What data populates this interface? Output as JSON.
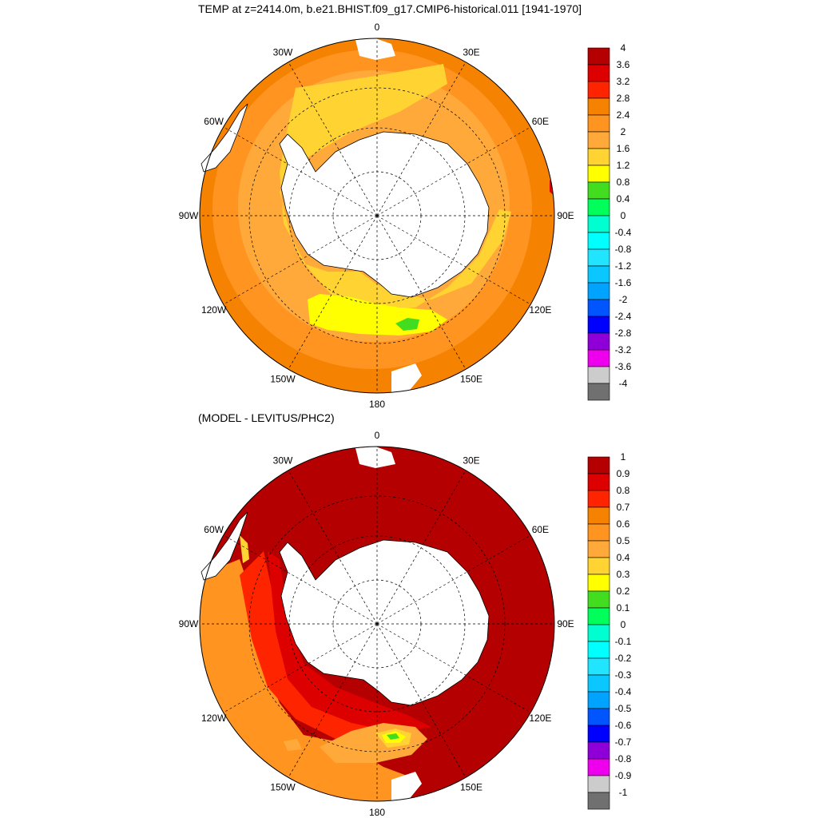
{
  "title": "TEMP at z=2414.0m, b.e21.BHIST.f09_g17.CMIP6-historical.011 [1941-1970]",
  "diff_title": "(MODEL - LEVITUS/PHC2)",
  "lon_labels": [
    "0",
    "30E",
    "60E",
    "90E",
    "120E",
    "150E",
    "180",
    "150W",
    "120W",
    "90W",
    "60W",
    "30W"
  ],
  "colors": {
    "land": "#ffffff",
    "coast": "#000000",
    "grid": "#000000"
  },
  "colorbar_top": {
    "labels": [
      "4",
      "3.6",
      "3.2",
      "2.8",
      "2.4",
      "2",
      "1.6",
      "1.2",
      "0.8",
      "0.4",
      "0",
      "-0.4",
      "-0.8",
      "-1.2",
      "-1.6",
      "-2",
      "-2.4",
      "-2.8",
      "-3.2",
      "-3.6",
      "-4"
    ],
    "colors": [
      "#b40000",
      "#dc0000",
      "#ff2400",
      "#f58200",
      "#ff9421",
      "#ffa93b",
      "#ffd332",
      "#ffff00",
      "#43dd1f",
      "#00ff5a",
      "#00ffd0",
      "#00ffff",
      "#21e4ff",
      "#0bc7ff",
      "#00a3ff",
      "#0055ff",
      "#0000ff",
      "#8f00d8",
      "#ee00ee",
      "#cccccc",
      "#707070"
    ]
  },
  "colorbar_bottom": {
    "labels": [
      "1",
      "0.9",
      "0.8",
      "0.7",
      "0.6",
      "0.5",
      "0.4",
      "0.3",
      "0.2",
      "0.1",
      "0",
      "-0.1",
      "-0.2",
      "-0.3",
      "-0.4",
      "-0.5",
      "-0.6",
      "-0.7",
      "-0.8",
      "-0.9",
      "-1"
    ],
    "colors": [
      "#b40000",
      "#dc0000",
      "#ff2400",
      "#f58200",
      "#ff9421",
      "#ffa93b",
      "#ffd332",
      "#ffff00",
      "#43dd1f",
      "#00ff5a",
      "#00ffd0",
      "#00ffff",
      "#21e4ff",
      "#0bc7ff",
      "#00a3ff",
      "#0055ff",
      "#0000ff",
      "#8f00d8",
      "#ee00ee",
      "#cccccc",
      "#707070"
    ]
  },
  "map_top": {
    "field": "TEMP",
    "depth": "2414.0m",
    "dominant_value_range": [
      1.2,
      2.8
    ],
    "fill_colors": {
      "outer": "#f58200",
      "mid": "#ff9421",
      "inner": "#ffa93b",
      "near_shelf": "#ffd332",
      "ross_sea": "#ffff00",
      "spot": "#43dd1f",
      "edge_spot": "#dc0000"
    }
  },
  "map_bottom": {
    "field": "MODEL - LEVITUS/PHC2",
    "fill_colors": {
      "background": "#b40000",
      "pacific_west": "#ff9421",
      "pacific_mid": "#ff2400",
      "near_coast": "#dc0000",
      "ross_a": "#ffa93b",
      "ross_b": "#ffd332",
      "ross_c": "#ffff00",
      "ross_d": "#43dd1f"
    }
  }
}
